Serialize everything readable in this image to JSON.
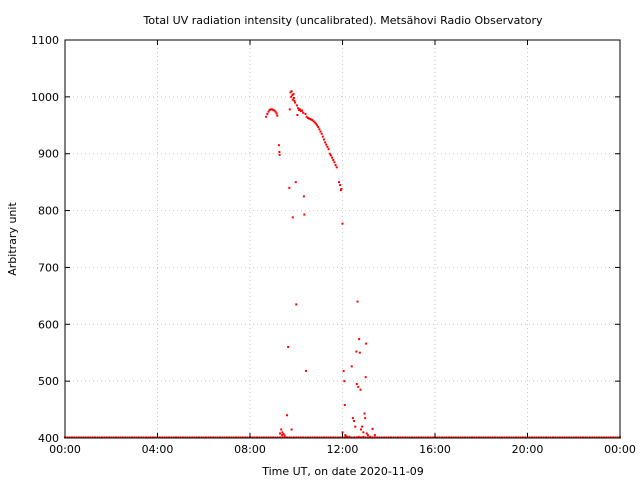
{
  "chart_data": {
    "type": "scatter",
    "title": "Total UV radiation intensity (uncalibrated). Metsähovi Radio Observatory",
    "xlabel": "Time UT, on date 2020-11-09",
    "ylabel": "Arbitrary unit",
    "xlim": [
      0,
      24
    ],
    "ylim": [
      400,
      1100
    ],
    "x_ticks": [
      {
        "value": 0,
        "label": "00:00"
      },
      {
        "value": 4,
        "label": "04:00"
      },
      {
        "value": 8,
        "label": "08:00"
      },
      {
        "value": 12,
        "label": "12:00"
      },
      {
        "value": 16,
        "label": "16:00"
      },
      {
        "value": 20,
        "label": "20:00"
      },
      {
        "value": 24,
        "label": "00:00"
      }
    ],
    "y_ticks": [
      {
        "value": 400,
        "label": "400"
      },
      {
        "value": 500,
        "label": "500"
      },
      {
        "value": 600,
        "label": "600"
      },
      {
        "value": 700,
        "label": "700"
      },
      {
        "value": 800,
        "label": "800"
      },
      {
        "value": 900,
        "label": "900"
      },
      {
        "value": 1000,
        "label": "1000"
      },
      {
        "value": 1100,
        "label": "1100"
      }
    ],
    "grid": true,
    "marker_color": "#ff0000",
    "baseline": {
      "y": 401,
      "x_from": 0,
      "x_to": 24,
      "step": 0.1
    },
    "points": [
      [
        8.7,
        965
      ],
      [
        8.75,
        970
      ],
      [
        8.8,
        974
      ],
      [
        8.85,
        977
      ],
      [
        8.9,
        978
      ],
      [
        8.95,
        978
      ],
      [
        9.0,
        977
      ],
      [
        9.05,
        976
      ],
      [
        9.1,
        974
      ],
      [
        9.15,
        971
      ],
      [
        9.18,
        967
      ],
      [
        9.25,
        915
      ],
      [
        9.27,
        903
      ],
      [
        9.28,
        898
      ],
      [
        9.3,
        408
      ],
      [
        9.35,
        415
      ],
      [
        9.38,
        405
      ],
      [
        9.4,
        410
      ],
      [
        9.45,
        407
      ],
      [
        9.5,
        404
      ],
      [
        9.6,
        440
      ],
      [
        9.65,
        560
      ],
      [
        9.7,
        840
      ],
      [
        9.72,
        978
      ],
      [
        9.75,
        1008
      ],
      [
        9.78,
        1000
      ],
      [
        9.8,
        1010
      ],
      [
        9.83,
        1003
      ],
      [
        9.85,
        995
      ],
      [
        9.88,
        1005
      ],
      [
        9.9,
        998
      ],
      [
        9.92,
        993
      ],
      [
        9.95,
        990
      ],
      [
        9.85,
        788
      ],
      [
        9.8,
        415
      ],
      [
        9.98,
        850
      ],
      [
        10.0,
        635
      ],
      [
        10.03,
        985
      ],
      [
        10.05,
        968
      ],
      [
        10.08,
        980
      ],
      [
        10.12,
        977
      ],
      [
        10.16,
        978
      ],
      [
        10.2,
        975
      ],
      [
        10.25,
        976
      ],
      [
        10.3,
        972
      ],
      [
        10.33,
        825
      ],
      [
        10.35,
        793
      ],
      [
        10.4,
        970
      ],
      [
        10.42,
        518
      ],
      [
        10.45,
        965
      ],
      [
        10.5,
        963
      ],
      [
        10.55,
        962
      ],
      [
        10.6,
        961
      ],
      [
        10.65,
        960
      ],
      [
        10.7,
        959
      ],
      [
        10.75,
        957
      ],
      [
        10.8,
        955
      ],
      [
        10.85,
        953
      ],
      [
        10.9,
        950
      ],
      [
        10.95,
        947
      ],
      [
        11.0,
        943
      ],
      [
        11.05,
        939
      ],
      [
        11.1,
        935
      ],
      [
        11.15,
        930
      ],
      [
        11.2,
        925
      ],
      [
        11.25,
        920
      ],
      [
        11.3,
        916
      ],
      [
        11.35,
        912
      ],
      [
        11.4,
        908
      ],
      [
        11.45,
        900
      ],
      [
        11.5,
        897
      ],
      [
        11.55,
        893
      ],
      [
        11.6,
        889
      ],
      [
        11.65,
        885
      ],
      [
        11.7,
        880
      ],
      [
        11.75,
        876
      ],
      [
        11.85,
        850
      ],
      [
        11.9,
        845
      ],
      [
        11.95,
        838
      ],
      [
        11.93,
        836
      ],
      [
        12.0,
        777
      ],
      [
        12.05,
        518
      ],
      [
        12.08,
        500
      ],
      [
        12.1,
        458
      ],
      [
        12.0,
        410
      ],
      [
        12.12,
        405
      ],
      [
        12.15,
        403
      ],
      [
        12.2,
        402
      ],
      [
        12.3,
        402
      ],
      [
        12.4,
        526
      ],
      [
        12.45,
        435
      ],
      [
        12.5,
        430
      ],
      [
        12.55,
        420
      ],
      [
        12.6,
        552
      ],
      [
        12.62,
        495
      ],
      [
        12.65,
        640
      ],
      [
        12.68,
        490
      ],
      [
        12.72,
        574
      ],
      [
        12.75,
        550
      ],
      [
        12.78,
        485
      ],
      [
        12.8,
        415
      ],
      [
        12.85,
        420
      ],
      [
        12.9,
        410
      ],
      [
        12.95,
        443
      ],
      [
        12.98,
        435
      ],
      [
        13.0,
        507
      ],
      [
        13.02,
        566
      ],
      [
        13.05,
        408
      ],
      [
        13.1,
        405
      ],
      [
        13.3,
        416
      ],
      [
        13.4,
        405
      ],
      [
        12.7,
        402
      ],
      [
        12.9,
        402
      ],
      [
        13.2,
        402
      ]
    ]
  }
}
